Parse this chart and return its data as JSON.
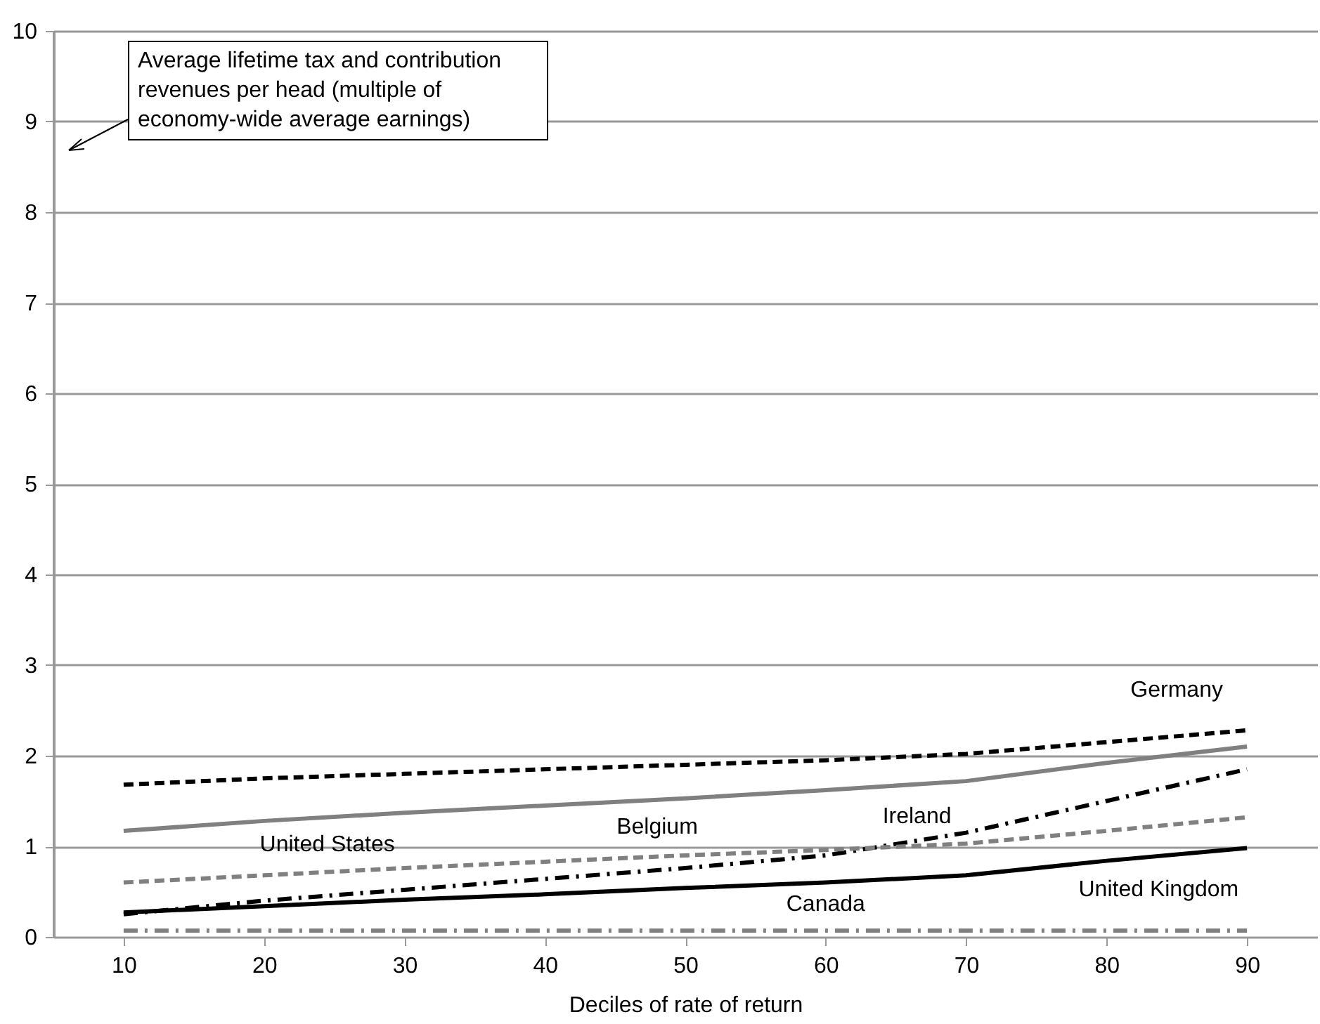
{
  "chart_data": {
    "type": "line",
    "xlabel": "Deciles of rate of return",
    "ylabel": "Average lifetime tax and contribution revenues per head (multiple of economy-wide average earnings)",
    "categories": [
      "10",
      "20",
      "30",
      "40",
      "50",
      "60",
      "70",
      "80",
      "90"
    ],
    "ylim": [
      0,
      10
    ],
    "yticks": [
      0,
      1,
      2,
      3,
      4,
      5,
      6,
      7,
      8,
      9,
      10
    ],
    "grid": "y",
    "marker": "none",
    "series": [
      {
        "name": "Germany",
        "color": "#000000",
        "line_style": "dashed",
        "values": [
          1.68,
          1.75,
          1.8,
          1.85,
          1.9,
          1.95,
          2.02,
          2.15,
          2.28
        ]
      },
      {
        "name": "Belgium",
        "color": "#808080",
        "line_style": "solid",
        "values": [
          1.17,
          1.28,
          1.37,
          1.45,
          1.53,
          1.62,
          1.72,
          1.92,
          2.1
        ]
      },
      {
        "name": "Ireland",
        "color": "#000000",
        "line_style": "dashdot",
        "values": [
          0.25,
          0.4,
          0.52,
          0.64,
          0.76,
          0.9,
          1.15,
          1.5,
          1.85
        ]
      },
      {
        "name": "United States",
        "color": "#808080",
        "line_style": "dashed",
        "values": [
          0.6,
          0.68,
          0.76,
          0.83,
          0.9,
          0.96,
          1.03,
          1.17,
          1.32
        ]
      },
      {
        "name": "United Kingdom",
        "color": "#000000",
        "line_style": "solid",
        "values": [
          0.27,
          0.34,
          0.41,
          0.47,
          0.54,
          0.6,
          0.68,
          0.84,
          0.98
        ]
      },
      {
        "name": "Canada",
        "color": "#808080",
        "line_style": "dashdot",
        "values": [
          0.07,
          0.07,
          0.07,
          0.07,
          0.07,
          0.07,
          0.07,
          0.07,
          0.07
        ]
      }
    ]
  }
}
